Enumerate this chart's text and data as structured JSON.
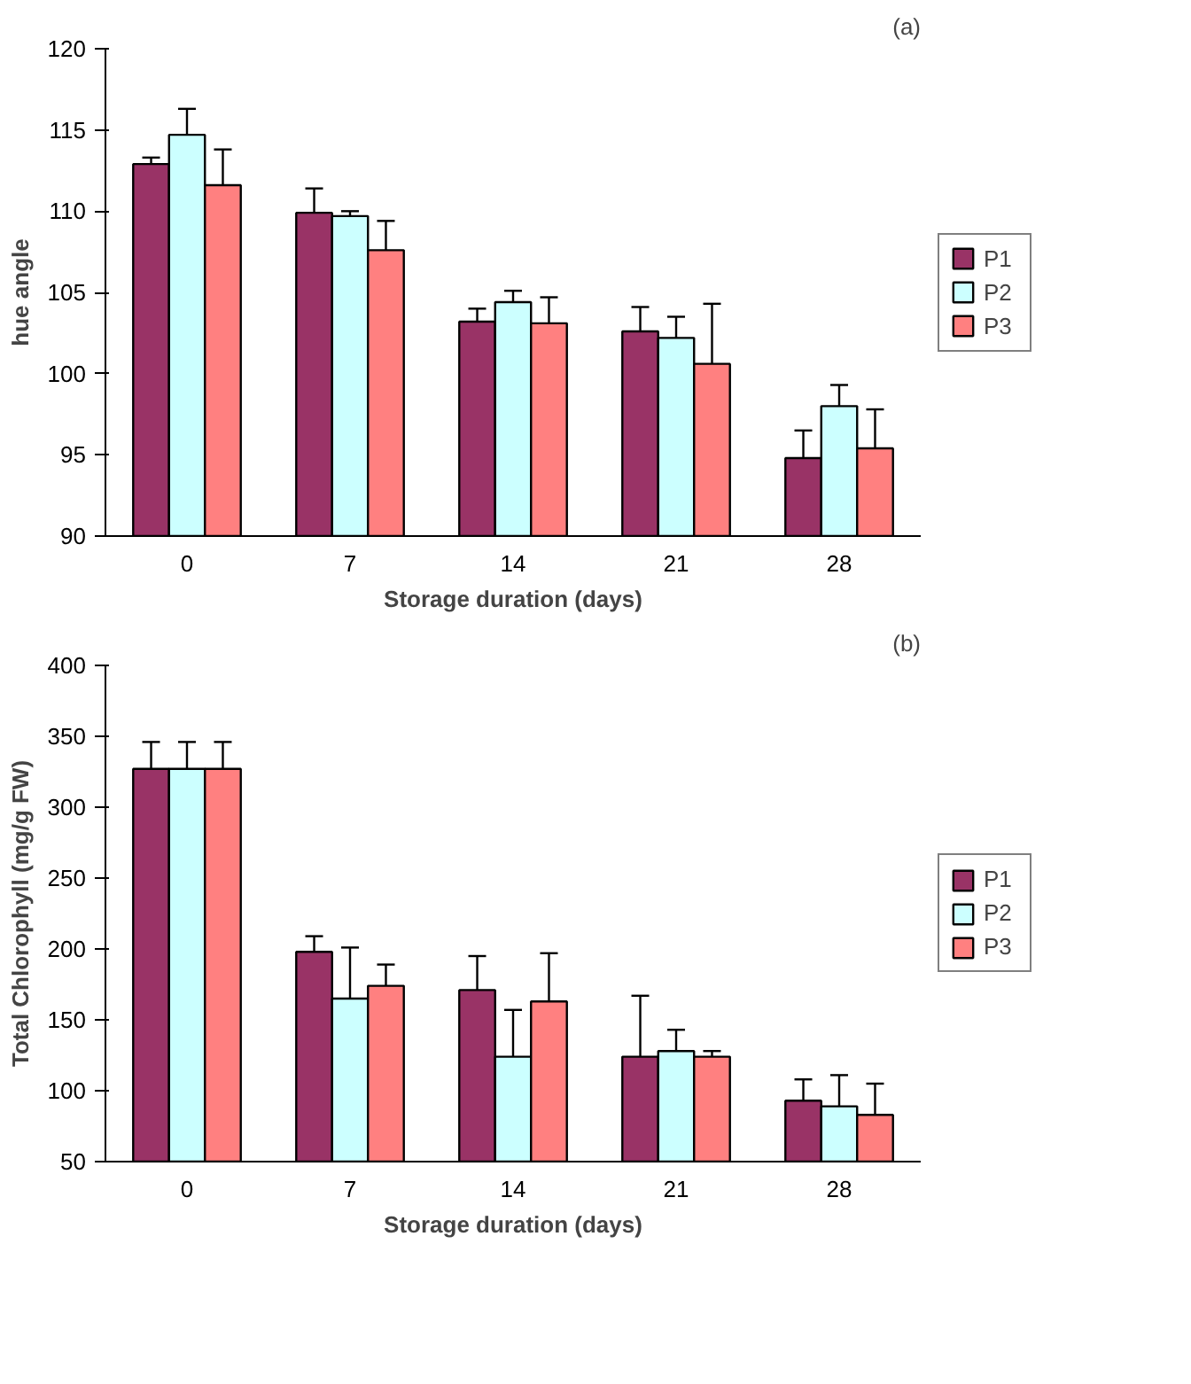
{
  "chart_data": [
    {
      "type": "bar",
      "categories": [
        "0",
        "7",
        "14",
        "21",
        "28"
      ],
      "xlabel": "Storage duration (days)",
      "ylabel": "hue angle",
      "annotations": [
        "(a)"
      ],
      "ylim": [
        90,
        120
      ],
      "yticks": [
        90,
        95,
        100,
        105,
        110,
        115,
        120
      ],
      "legend": "right",
      "grid": false,
      "series": [
        {
          "name": "P1",
          "color": "#993366",
          "values": [
            112.9,
            109.9,
            103.2,
            102.6,
            94.8
          ],
          "errors": [
            0.4,
            1.5,
            0.8,
            1.5,
            1.7
          ]
        },
        {
          "name": "P2",
          "color": "#ccffff",
          "values": [
            114.7,
            109.7,
            104.4,
            102.2,
            98.0
          ],
          "errors": [
            1.6,
            0.3,
            0.7,
            1.3,
            1.3
          ]
        },
        {
          "name": "P3",
          "color": "#ff8080",
          "values": [
            111.6,
            107.6,
            103.1,
            100.6,
            95.4
          ],
          "errors": [
            2.2,
            1.8,
            1.6,
            3.7,
            2.4
          ]
        }
      ]
    },
    {
      "type": "bar",
      "categories": [
        "0",
        "7",
        "14",
        "21",
        "28"
      ],
      "xlabel": "Storage duration (days)",
      "ylabel": "Total Chlorophyll (mg/g FW)",
      "annotations": [
        "(b)"
      ],
      "ylim": [
        50,
        400
      ],
      "yticks": [
        50,
        100,
        150,
        200,
        250,
        300,
        350,
        400
      ],
      "legend": "right",
      "grid": false,
      "series": [
        {
          "name": "P1",
          "color": "#993366",
          "values": [
            327,
            198,
            171,
            124,
            93
          ],
          "errors": [
            19,
            11,
            24,
            43,
            15
          ]
        },
        {
          "name": "P2",
          "color": "#ccffff",
          "values": [
            327,
            165,
            124,
            128,
            89
          ],
          "errors": [
            19,
            36,
            33,
            15,
            22
          ]
        },
        {
          "name": "P3",
          "color": "#ff8080",
          "values": [
            327,
            174,
            163,
            124,
            83
          ],
          "errors": [
            19,
            15,
            34,
            4,
            22
          ]
        }
      ]
    }
  ]
}
